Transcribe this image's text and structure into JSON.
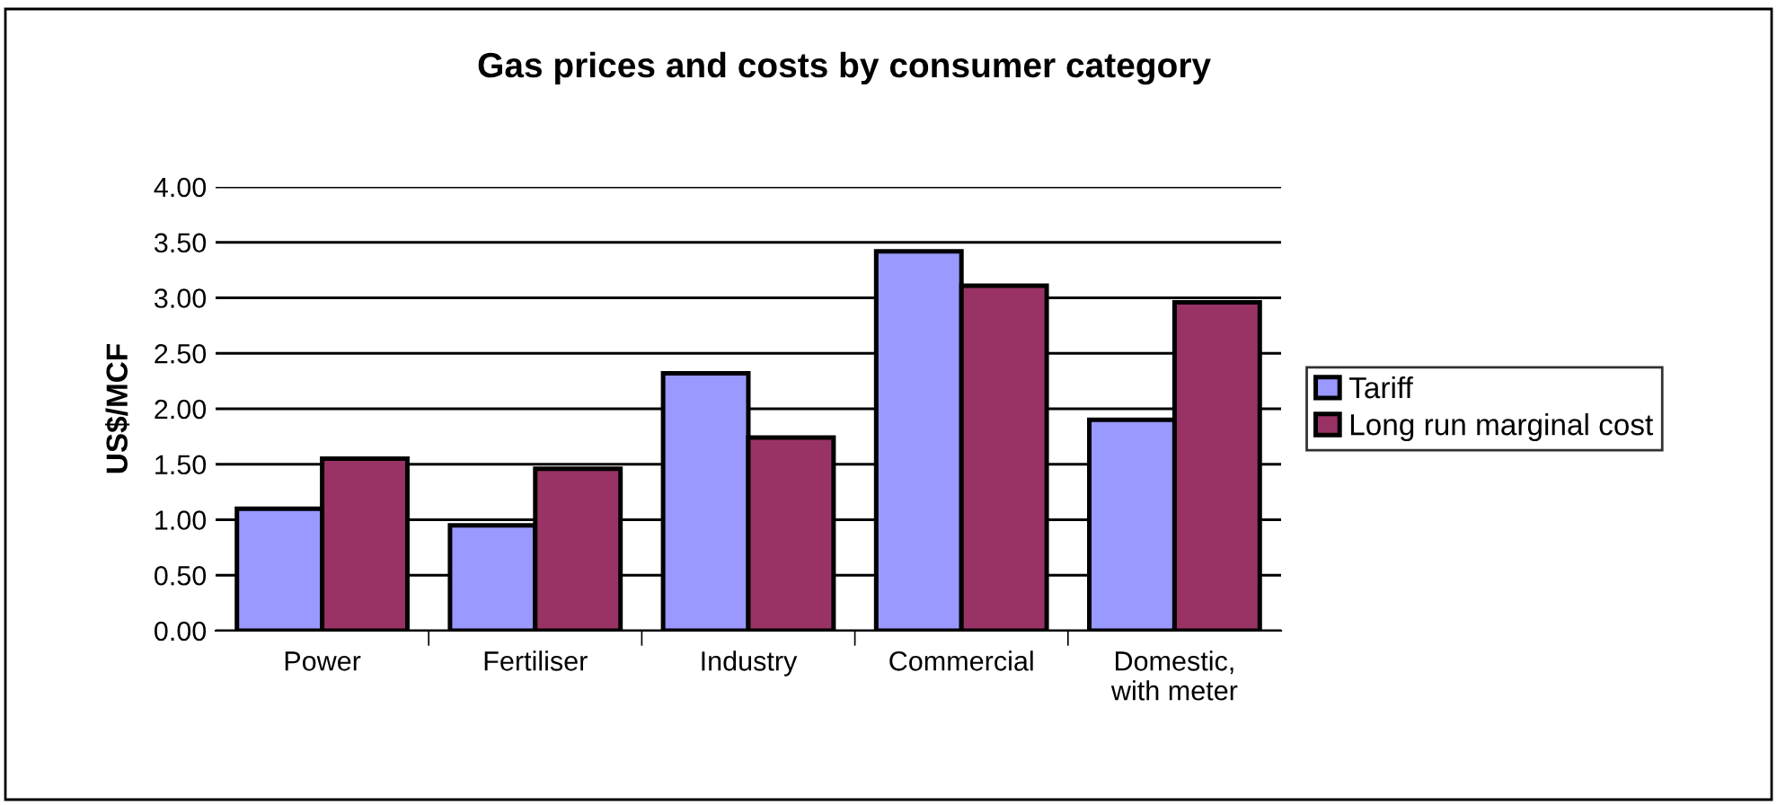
{
  "chart_data": {
    "type": "bar",
    "title": "Gas prices and costs by consumer category",
    "ylabel": "US$/MCF",
    "categories": [
      "Power",
      "Fertiliser",
      "Industry",
      "Commercial",
      "Domestic,\nwith meter"
    ],
    "series": [
      {
        "name": "Tariff",
        "color": "#9999ff",
        "values": [
          1.1,
          0.95,
          2.32,
          3.42,
          1.9
        ]
      },
      {
        "name": "Long run marginal cost",
        "color": "#993366",
        "values": [
          1.55,
          1.46,
          1.74,
          3.11,
          2.96
        ]
      }
    ],
    "ylim": [
      0,
      4
    ],
    "yticks": [
      {
        "value": 0,
        "label": "0.00"
      },
      {
        "value": 0.5,
        "label": "0.50"
      },
      {
        "value": 1,
        "label": "1.00"
      },
      {
        "value": 1.5,
        "label": "1.50"
      },
      {
        "value": 2,
        "label": "2.00"
      },
      {
        "value": 2.5,
        "label": "2.50"
      },
      {
        "value": 3,
        "label": "3.00"
      },
      {
        "value": 3.5,
        "label": "3.50"
      },
      {
        "value": 4,
        "label": "4.00"
      }
    ],
    "grid": "y",
    "legend": "right"
  }
}
